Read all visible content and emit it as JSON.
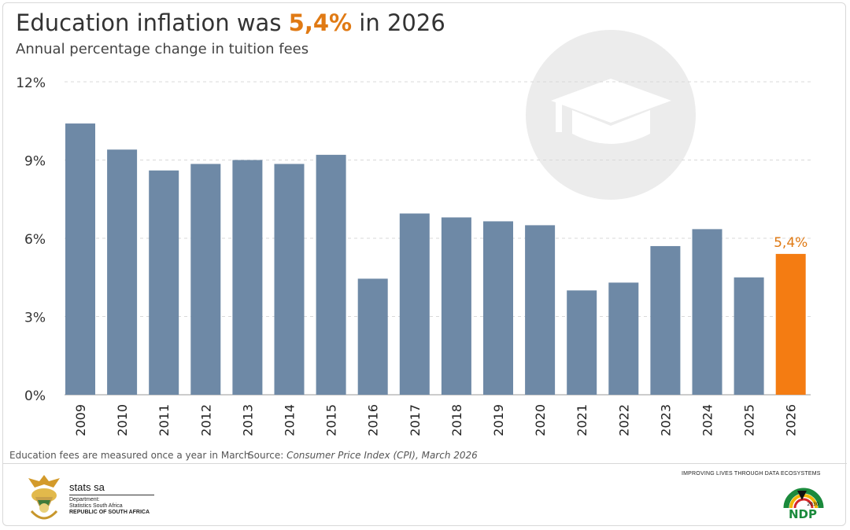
{
  "header": {
    "title_prefix": "Education inflation was ",
    "title_highlight": "5,4%",
    "title_suffix": " in 2026",
    "subtitle": "Annual percentage change in tuition fees"
  },
  "footer": {
    "note": "Education fees are measured once a year in March",
    "source_label": "Source: ",
    "source_text": "Consumer Price Index (CPI), March 2026",
    "brand": "stats sa",
    "dept_line1": "Department:",
    "dept_line2": "Statistics South Africa",
    "dept_line3": "REPUBLIC OF SOUTH AFRICA",
    "tagline": "IMPROVING LIVES THROUGH DATA ECOSYSTEMS",
    "ndp_text": "NDP",
    "ndp_year": "2030"
  },
  "icons": {
    "background": "graduation-cap-icon"
  },
  "colors": {
    "bar": "#6e89a6",
    "highlight": "#f47c12",
    "highlight_text": "#e07a14"
  },
  "chart_data": {
    "type": "bar",
    "title": "Education inflation was 5,4% in 2026",
    "subtitle": "Annual percentage change in tuition fees",
    "categories": [
      "2009",
      "2010",
      "2011",
      "2012",
      "2013",
      "2014",
      "2015",
      "2016",
      "2017",
      "2018",
      "2019",
      "2020",
      "2021",
      "2022",
      "2023",
      "2024",
      "2025",
      "2026"
    ],
    "values": [
      10.4,
      9.4,
      8.6,
      8.85,
      9.0,
      8.85,
      9.2,
      4.45,
      6.95,
      6.8,
      6.65,
      6.5,
      4.0,
      4.3,
      5.7,
      6.35,
      4.5,
      5.4
    ],
    "highlight_index": 17,
    "highlight_label": "5,4%",
    "ylim": [
      0,
      12
    ],
    "yticks": [
      0,
      3,
      6,
      9,
      12
    ],
    "ytick_labels": [
      "0%",
      "3%",
      "6%",
      "9%",
      "12%"
    ],
    "grid": true
  }
}
